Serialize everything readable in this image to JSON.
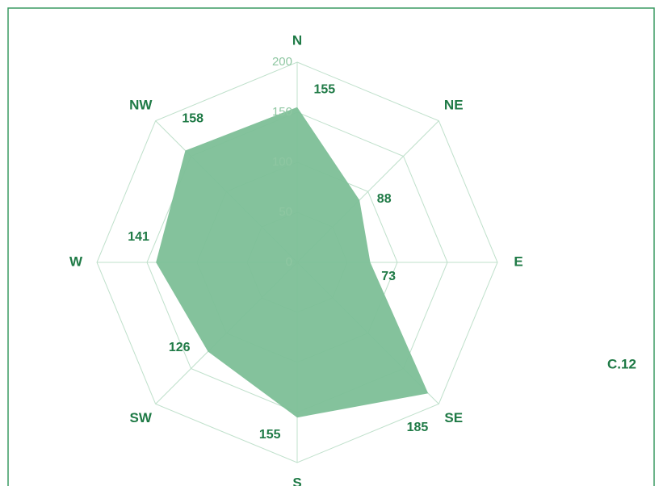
{
  "chart_data": {
    "type": "radar",
    "categories": [
      "N",
      "NE",
      "E",
      "SE",
      "S",
      "SW",
      "W",
      "NW"
    ],
    "values": [
      155,
      88,
      73,
      185,
      155,
      126,
      141,
      158
    ],
    "color": "#7dbf97",
    "ylim": [
      0,
      200
    ],
    "yticks": [
      0,
      50,
      100,
      150,
      200
    ],
    "grid": true,
    "annotation": "C.12"
  }
}
